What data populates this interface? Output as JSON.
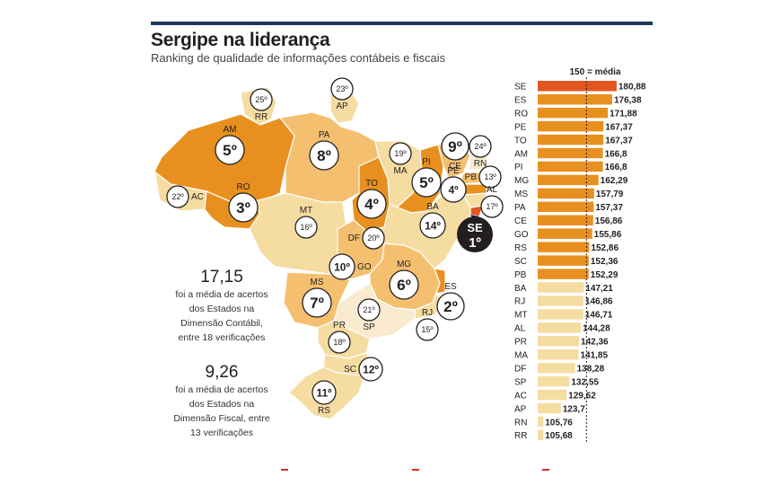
{
  "header": {
    "title": "Sergipe na liderança",
    "subtitle": "Ranking de qualidade de informações contábeis e fiscais"
  },
  "notes": [
    {
      "value": "17,15",
      "lines": [
        "foi a média de acertos",
        "dos Estados na",
        "Dimensão Contábil,",
        "entre 18 verificações"
      ]
    },
    {
      "value": "9,26",
      "lines": [
        "foi a média de acertos",
        "dos Estados na",
        "Dimensão Fiscal, entre",
        "13 verificações"
      ]
    }
  ],
  "map": {
    "states": [
      {
        "uf": "AM",
        "rank": "5º"
      },
      {
        "uf": "PA",
        "rank": "8º"
      },
      {
        "uf": "RR",
        "rank": "25º"
      },
      {
        "uf": "AP",
        "rank": "23º"
      },
      {
        "uf": "AC",
        "rank": "22º"
      },
      {
        "uf": "RO",
        "rank": "3º"
      },
      {
        "uf": "MT",
        "rank": "16º"
      },
      {
        "uf": "TO",
        "rank": "4º"
      },
      {
        "uf": "MA",
        "rank": "19º"
      },
      {
        "uf": "PI",
        "rank": "5º"
      },
      {
        "uf": "CE",
        "rank": "9º"
      },
      {
        "uf": "RN",
        "rank": "24º"
      },
      {
        "uf": "PB",
        "rank": "13º"
      },
      {
        "uf": "PE",
        "rank": "4º"
      },
      {
        "uf": "AL",
        "rank": "17º"
      },
      {
        "uf": "SE",
        "rank": "1º"
      },
      {
        "uf": "BA",
        "rank": "14º"
      },
      {
        "uf": "DF",
        "rank": "20º"
      },
      {
        "uf": "GO",
        "rank": "10º"
      },
      {
        "uf": "MG",
        "rank": "6º"
      },
      {
        "uf": "ES",
        "rank": "2º"
      },
      {
        "uf": "RJ",
        "rank": "15º"
      },
      {
        "uf": "SP",
        "rank": "21º"
      },
      {
        "uf": "MS",
        "rank": "7º"
      },
      {
        "uf": "PR",
        "rank": "18º"
      },
      {
        "uf": "SC",
        "rank": "12º"
      },
      {
        "uf": "RS",
        "rank": "11º"
      }
    ]
  },
  "colors": {
    "top": "#e2561f",
    "high": "#e8901f",
    "mid": "#f4c070",
    "low": "#f5dda2",
    "lowest": "#f9ead0",
    "rule": "#1a3a5c",
    "se_marker": "#231f20"
  },
  "chart_data": {
    "type": "bar",
    "orientation": "horizontal",
    "reference_label": "150 = média",
    "reference_value": 150,
    "categories": [
      "SE",
      "ES",
      "RO",
      "PE",
      "TO",
      "AM",
      "PI",
      "MG",
      "MS",
      "PA",
      "CE",
      "GO",
      "RS",
      "SC",
      "PB",
      "BA",
      "RJ",
      "MT",
      "AL",
      "PR",
      "MA",
      "DF",
      "SP",
      "AC",
      "AP",
      "RN",
      "RR"
    ],
    "value_labels": [
      "180,88",
      "176,38",
      "171,88",
      "167,37",
      "167,37",
      "166,8",
      "166,8",
      "162,29",
      "157,79",
      "157,37",
      "156,86",
      "155,86",
      "152,86",
      "152,36",
      "152,29",
      "147,21",
      "146,86",
      "146,71",
      "144,28",
      "142,36",
      "141,85",
      "138,28",
      "132,55",
      "129,62",
      "123,7",
      "105,76",
      "105,68"
    ],
    "values": [
      180.88,
      176.38,
      171.88,
      167.37,
      167.37,
      166.8,
      166.8,
      162.29,
      157.79,
      157.37,
      156.86,
      155.86,
      152.86,
      152.36,
      152.29,
      147.21,
      146.86,
      146.71,
      144.28,
      142.36,
      141.85,
      138.28,
      132.55,
      129.62,
      123.7,
      105.76,
      105.68
    ]
  }
}
